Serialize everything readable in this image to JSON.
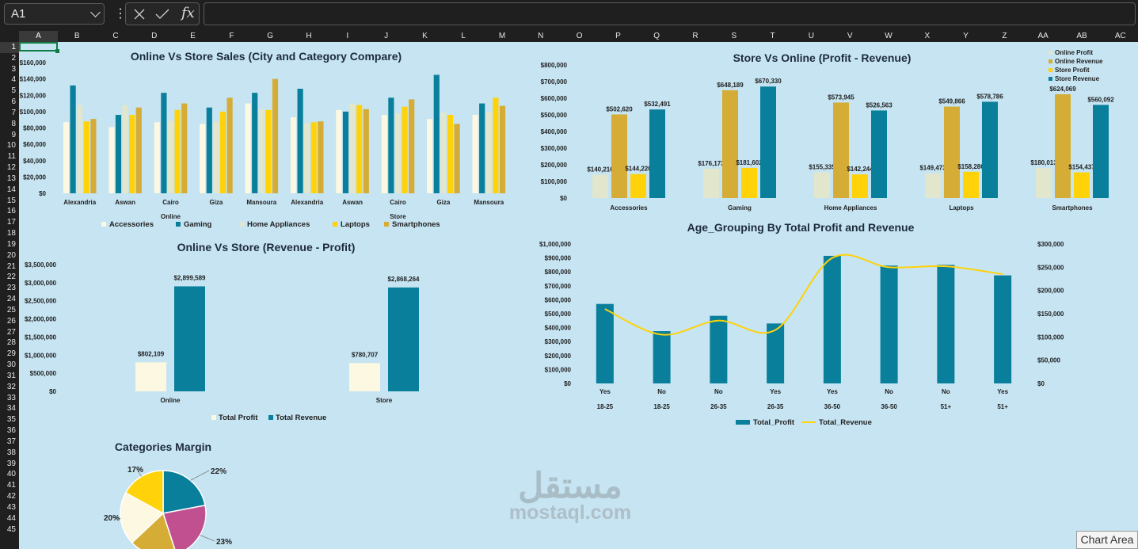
{
  "formula_bar": {
    "name_box": "A1",
    "cancel_icon": "x-icon",
    "enter_icon": "check-icon",
    "fx_label": "fx",
    "formula": ""
  },
  "columns": [
    "A",
    "B",
    "C",
    "D",
    "E",
    "F",
    "G",
    "H",
    "I",
    "J",
    "K",
    "L",
    "M",
    "N",
    "O",
    "P",
    "Q",
    "R",
    "S",
    "T",
    "U",
    "V",
    "W",
    "X",
    "Y",
    "Z",
    "AA",
    "AB",
    "AC"
  ],
  "rows": [
    "1",
    "2",
    "3",
    "4",
    "5",
    "6",
    "7",
    "8",
    "9",
    "10",
    "11",
    "12",
    "13",
    "14",
    "15",
    "16",
    "17",
    "18",
    "19",
    "20",
    "21",
    "22",
    "23",
    "24",
    "25",
    "26",
    "27",
    "28",
    "29",
    "30",
    "31",
    "32",
    "33",
    "34",
    "35",
    "36",
    "37",
    "38",
    "39",
    "40",
    "41",
    "42",
    "43",
    "44",
    "45"
  ],
  "colors": {
    "accessories": "#fdf8e1",
    "gaming": "#0a7f9b",
    "home_appliances": "#e1e6cd",
    "laptops": "#ffd20a",
    "smartphones": "#d5ad36",
    "pie_pink": "#c05090"
  },
  "watermark": {
    "arabic": "مستقل",
    "latin": "mostaql.com"
  },
  "tooltip": "Chart Area",
  "chart_data": [
    {
      "type": "bar",
      "title": "Online Vs Store Sales (City and Category Compare)",
      "categories": [
        "Alexandria",
        "Aswan",
        "Cairo",
        "Giza",
        "Mansoura",
        "Alexandria",
        "Aswan",
        "Cairo",
        "Giza",
        "Mansoura"
      ],
      "groups": [
        {
          "label": "Online",
          "span": [
            0,
            4
          ]
        },
        {
          "label": "Store",
          "span": [
            5,
            9
          ]
        }
      ],
      "series": [
        {
          "name": "Accessories",
          "values": [
            87000,
            81000,
            87000,
            85000,
            110000,
            93000,
            102000,
            96000,
            91000,
            96000
          ]
        },
        {
          "name": "Gaming",
          "values": [
            132000,
            96000,
            123000,
            105000,
            123000,
            128000,
            100000,
            117000,
            145000,
            110000
          ]
        },
        {
          "name": "Home Appliances",
          "values": [
            108000,
            108000,
            89000,
            88000,
            103000,
            86000,
            110000,
            98000,
            99000,
            100000
          ]
        },
        {
          "name": "Laptops",
          "values": [
            88000,
            96000,
            102000,
            100000,
            102000,
            87000,
            108000,
            106000,
            96000,
            117000
          ]
        },
        {
          "name": "Smartphones",
          "values": [
            91000,
            105000,
            110000,
            117000,
            140000,
            88000,
            103000,
            115000,
            85000,
            107000
          ]
        }
      ],
      "yticks": [
        "$0",
        "$20,000",
        "$40,000",
        "$60,000",
        "$80,000",
        "$100,000",
        "$120,000",
        "$140,000",
        "$160,000"
      ],
      "ylim": [
        0,
        160000
      ],
      "legend": "bottom"
    },
    {
      "type": "bar",
      "title": "Store Vs Online (Profit - Revenue)",
      "categories": [
        "Accessories",
        "Gaming",
        "Home Appliances",
        "Laptops",
        "Smartphones"
      ],
      "series": [
        {
          "name": "Online Profit",
          "values": [
            140216,
            176173,
            155335,
            149473,
            180013
          ],
          "labels": [
            "$140,216",
            "$176,173",
            "$155,335",
            "$149,473",
            "$180,013"
          ]
        },
        {
          "name": "Online Revenue",
          "values": [
            502620,
            648189,
            573945,
            549866,
            624069
          ],
          "labels": [
            "$502,620",
            "$648,189",
            "$573,945",
            "$549,866",
            "$624,069"
          ]
        },
        {
          "name": "Store Profit",
          "values": [
            144220,
            181602,
            142244,
            158286,
            154437
          ],
          "labels": [
            "$144,220",
            "$181,602",
            "$142,244",
            "$158,286",
            "$154,437"
          ]
        },
        {
          "name": "Store Revenue",
          "values": [
            532491,
            670330,
            526563,
            578786,
            560092
          ],
          "labels": [
            "$532,491",
            "$670,330",
            "$526,563",
            "$578,786",
            "$560,092"
          ]
        }
      ],
      "yticks": [
        "$0",
        "$100,000",
        "$200,000",
        "$300,000",
        "$400,000",
        "$500,000",
        "$600,000",
        "$700,000",
        "$800,000"
      ],
      "ylim": [
        0,
        800000
      ],
      "legend": "top-right"
    },
    {
      "type": "bar",
      "title": "Online Vs Store (Revenue - Profit)",
      "categories": [
        "Online",
        "Store"
      ],
      "series": [
        {
          "name": "Total Profit",
          "values": [
            802109,
            780707
          ],
          "labels": [
            "$802,109",
            "$780,707"
          ]
        },
        {
          "name": "Total Revenue",
          "values": [
            2899589,
            2868264
          ],
          "labels": [
            "$2,899,589",
            "$2,868,264"
          ]
        }
      ],
      "yticks": [
        "$0",
        "$500,000",
        "$1,000,000",
        "$1,500,000",
        "$2,000,000",
        "$2,500,000",
        "$3,000,000",
        "$3,500,000"
      ],
      "ylim": [
        0,
        3500000
      ],
      "legend": "bottom"
    },
    {
      "type": "bar",
      "title": "Age_Grouping By Total Profit and Revenue",
      "categories": [
        "Yes",
        "No",
        "No",
        "Yes",
        "Yes",
        "No",
        "No",
        "Yes"
      ],
      "subcategories": [
        "18-25",
        "18-25",
        "26-35",
        "26-35",
        "36-50",
        "36-50",
        "51+",
        "51+"
      ],
      "series": [
        {
          "name": "Total_Profit",
          "type": "bar",
          "axis": "left",
          "values": [
            570000,
            375000,
            485000,
            430000,
            915000,
            845000,
            850000,
            775000
          ]
        },
        {
          "name": "Total_Revenue",
          "type": "line",
          "axis": "right",
          "values": [
            160000,
            105000,
            135000,
            115000,
            270000,
            250000,
            252000,
            235000
          ]
        }
      ],
      "yticks": [
        "$0",
        "$100,000",
        "$200,000",
        "$300,000",
        "$400,000",
        "$500,000",
        "$600,000",
        "$700,000",
        "$800,000",
        "$900,000",
        "$1,000,000"
      ],
      "ylim": [
        0,
        1000000
      ],
      "y2ticks": [
        "$0",
        "$50,000",
        "$100,000",
        "$150,000",
        "$200,000",
        "$250,000",
        "$300,000"
      ],
      "y2lim": [
        0,
        300000
      ],
      "legend": "bottom"
    },
    {
      "type": "pie",
      "title": "Categories Margin",
      "slices": [
        {
          "label": "22%",
          "value": 22,
          "color": "#0a7f9b"
        },
        {
          "label": "23%",
          "value": 23,
          "color": "#c05090"
        },
        {
          "label": "",
          "value": 18,
          "color": "#d5ad36"
        },
        {
          "label": "20%",
          "value": 20,
          "color": "#fdf8e1"
        },
        {
          "label": "17%",
          "value": 17,
          "color": "#ffd20a"
        }
      ]
    }
  ]
}
